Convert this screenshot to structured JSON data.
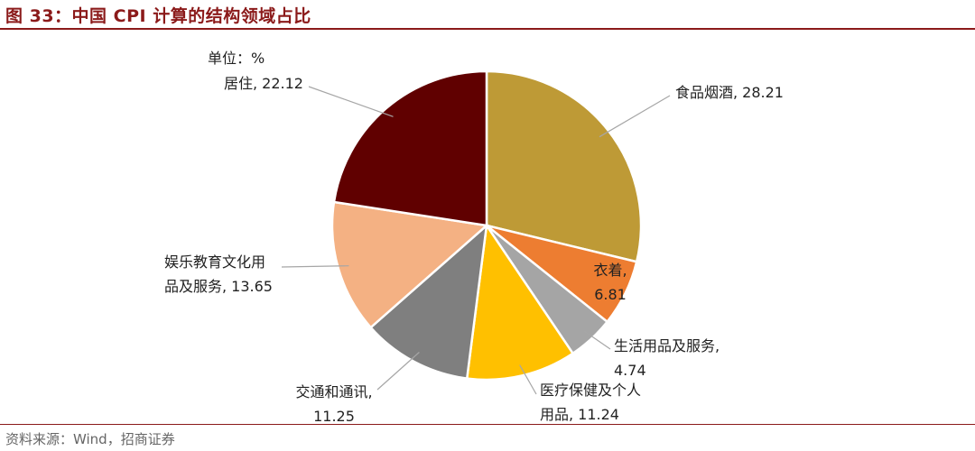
{
  "figure": {
    "title": "图 33：中国 CPI 计算的结构领域占比",
    "source": "资料来源：Wind，招商证券"
  },
  "chart_data": {
    "type": "pie",
    "unit_label": "单位：%",
    "slices": [
      {
        "name": "食品烟酒",
        "value": 28.21,
        "color": "#be9a36",
        "label_lines": [
          "食品烟酒, 28.21"
        ]
      },
      {
        "name": "衣着",
        "value": 6.81,
        "color": "#ed7d31",
        "label_lines": [
          "衣着,",
          "6.81"
        ]
      },
      {
        "name": "生活用品及服务",
        "value": 4.74,
        "color": "#a5a5a5",
        "label_lines": [
          "生活用品及服务,",
          "4.74"
        ]
      },
      {
        "name": "医疗保健及个人用品",
        "value": 11.24,
        "color": "#ffc000",
        "label_lines": [
          "医疗保健及个人",
          "用品, 11.24"
        ]
      },
      {
        "name": "交通和通讯",
        "value": 11.25,
        "color": "#7f7f7f",
        "label_lines": [
          "交通和通讯,",
          "11.25"
        ]
      },
      {
        "name": "娱乐教育文化用品及服务",
        "value": 13.65,
        "color": "#f4b183",
        "label_lines": [
          "娱乐教育文化用",
          "品及服务, 13.65"
        ]
      },
      {
        "name": "居住",
        "value": 22.12,
        "color": "#600000",
        "label_lines": [
          "居住, 22.12"
        ]
      }
    ]
  }
}
